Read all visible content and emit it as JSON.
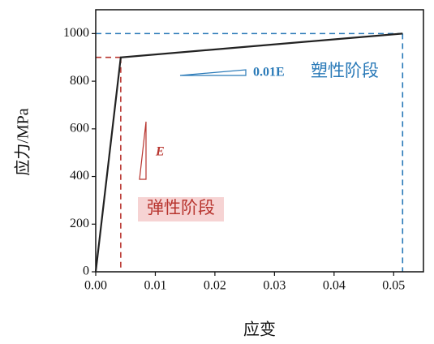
{
  "chart_data": {
    "type": "line",
    "x_label": "应变",
    "y_label": "应力/MPa",
    "x": [
      0,
      0.0042,
      0.0515
    ],
    "series": [
      {
        "color": "#222222",
        "values": [
          0,
          900,
          1000
        ]
      }
    ],
    "xlim": [
      0,
      0.055
    ],
    "ylim": [
      0,
      1100
    ],
    "xticks": [
      {
        "value": 0,
        "label": "0.00"
      },
      0.01,
      0.02,
      0.03,
      0.04,
      0.05
    ],
    "yticks": [
      0,
      200,
      400,
      600,
      800,
      1000
    ],
    "guide_colors": [
      "#b8352f",
      "#2a7ab8"
    ],
    "annotations": [
      {
        "text": "0.01E",
        "color": "#2a7ab8"
      },
      {
        "text": "塑性阶段",
        "color": "#2a7ab8"
      },
      {
        "text": "E",
        "color": "#b8352f"
      },
      {
        "text": "弹性阶段",
        "color": "#b8352f"
      }
    ]
  }
}
